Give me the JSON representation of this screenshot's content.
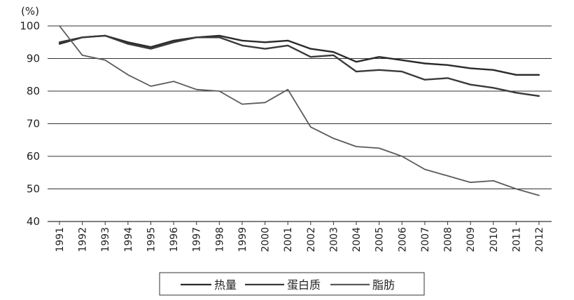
{
  "chart_data": {
    "type": "line",
    "unit_label": "(%)",
    "x": [
      "1991",
      "1992",
      "1993",
      "1994",
      "1995",
      "1996",
      "1997",
      "1998",
      "1999",
      "2000",
      "2001",
      "2002",
      "2003",
      "2004",
      "2005",
      "2006",
      "2007",
      "2008",
      "2009",
      "2010",
      "2011",
      "2012"
    ],
    "ylim": [
      40,
      100
    ],
    "yticks": [
      40,
      50,
      60,
      70,
      80,
      90,
      100
    ],
    "grid": true,
    "legend_position": "bottom",
    "series": [
      {
        "name": "热量",
        "color": "#2a2a2a",
        "values": [
          94.5,
          96.5,
          97,
          95,
          93.5,
          95.5,
          96.5,
          97,
          95.5,
          95,
          95.5,
          93,
          92,
          89,
          90.5,
          89.5,
          88.5,
          88,
          87,
          86.5,
          85,
          85
        ]
      },
      {
        "name": "蛋白质",
        "color": "#3a3a3a",
        "values": [
          95,
          96.5,
          97,
          94.5,
          93,
          95,
          96.5,
          96.5,
          94,
          93,
          94,
          90.5,
          91,
          86,
          86.5,
          86,
          83.5,
          84,
          82,
          81,
          79.5,
          78.5
        ]
      },
      {
        "name": "脂肪",
        "color": "#5a5a5a",
        "values": [
          100,
          91,
          89.5,
          85,
          81.5,
          83,
          80.5,
          80,
          76,
          76.5,
          80.5,
          69,
          65.5,
          63,
          62.5,
          60,
          56,
          54,
          52,
          52.5,
          50,
          48
        ]
      }
    ]
  }
}
